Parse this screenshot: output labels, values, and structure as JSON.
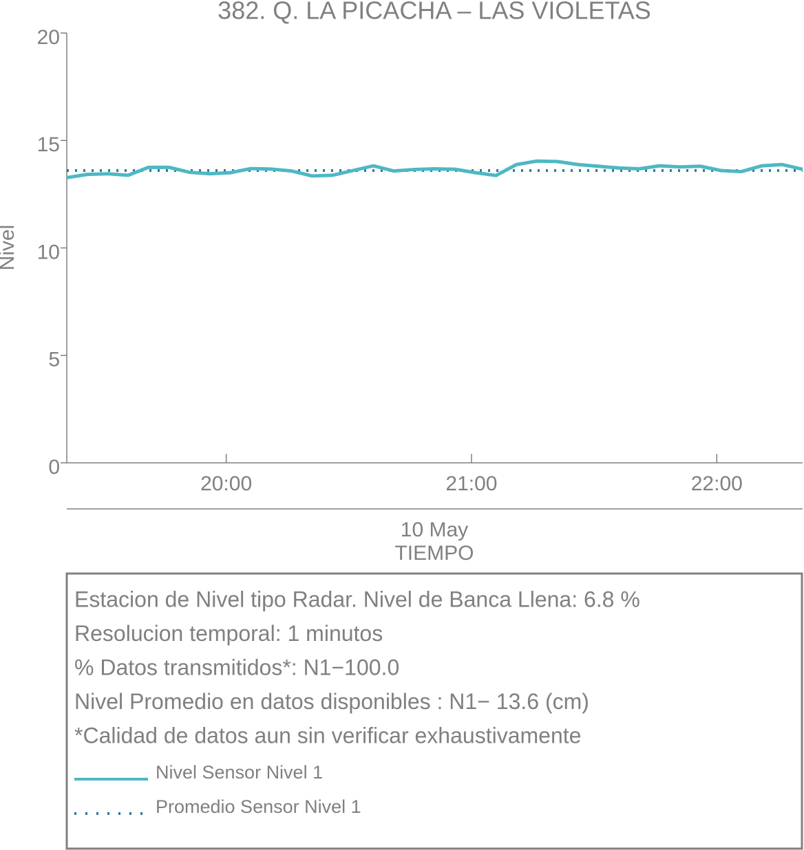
{
  "chart_data": {
    "type": "line",
    "title": "382. Q. LA PICACHA – LAS VIOLETAS",
    "ylabel": "Nivel",
    "xlabel": "TIEMPO",
    "date_label": "10 May",
    "x": [
      "19:21",
      "19:26",
      "19:31",
      "19:36",
      "19:41",
      "19:46",
      "19:51",
      "19:56",
      "20:01",
      "20:06",
      "20:11",
      "20:16",
      "20:21",
      "20:26",
      "20:31",
      "20:36",
      "20:41",
      "20:46",
      "20:51",
      "20:56",
      "21:01",
      "21:06",
      "21:11",
      "21:16",
      "21:21",
      "21:26",
      "21:31",
      "21:36",
      "21:41",
      "21:46",
      "21:51",
      "21:56",
      "22:01",
      "22:06",
      "22:11",
      "22:16",
      "22:21"
    ],
    "series": [
      {
        "name": "Nivel Sensor Nivel 1",
        "color": "#4db8c4",
        "values": [
          13.27,
          13.42,
          13.45,
          13.38,
          13.75,
          13.75,
          13.52,
          13.45,
          13.5,
          13.69,
          13.67,
          13.58,
          13.35,
          13.38,
          13.6,
          13.82,
          13.58,
          13.65,
          13.68,
          13.66,
          13.5,
          13.37,
          13.88,
          14.04,
          14.02,
          13.88,
          13.8,
          13.72,
          13.68,
          13.82,
          13.77,
          13.8,
          13.6,
          13.55,
          13.82,
          13.88,
          13.66
        ]
      }
    ],
    "mean": {
      "name": "Promedio Sensor Nivel 1",
      "color": "#2a7f9a",
      "value": 13.6
    },
    "xlim": [
      "19:21",
      "22:21"
    ],
    "xticks": [
      "20:00",
      "21:00",
      "22:00"
    ],
    "ylim": [
      0,
      20
    ],
    "yticks": [
      0,
      5,
      10,
      15,
      20
    ],
    "annotations": [
      "Estacion de Nivel tipo Radar. Nivel de Banca Llena:  6.8 %",
      "Resolucion temporal: 1 minutos",
      "% Datos transmitidos*: N1−100.0",
      "Nivel Promedio en datos disponibles : N1− 13.6 (cm)",
      "*Calidad de datos aun sin verificar exhaustivamente"
    ]
  }
}
